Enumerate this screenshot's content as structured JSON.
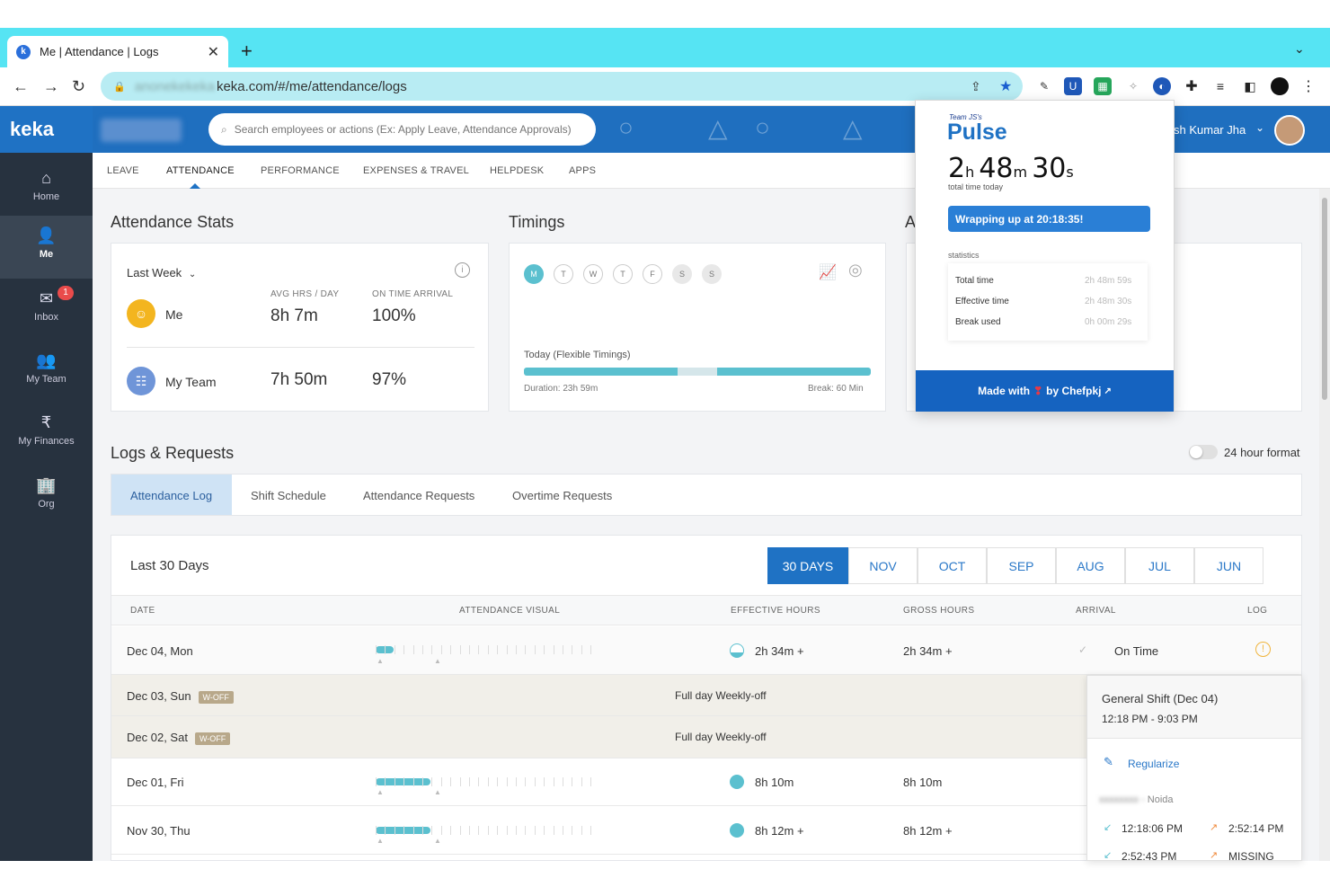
{
  "browser": {
    "tab_title": "Me | Attendance | Logs",
    "tab_favicon": "k",
    "close_glyph": "✕",
    "new_tab_glyph": "+",
    "tab_menu_glyph": "⌄",
    "url_prefix_blurred": "anonekekeka",
    "url": "keka.com/#/me/attendance/logs"
  },
  "app": {
    "logo": "keka",
    "search_placeholder": "Search employees or actions (Ex: Apply Leave, Attendance Approvals)",
    "user_name": "sh Kumar Jha"
  },
  "sidebar": {
    "items": [
      {
        "label": "Home",
        "icon": "⌂"
      },
      {
        "label": "Me",
        "icon": "👤"
      },
      {
        "label": "Inbox",
        "icon": "✉",
        "badge": "1"
      },
      {
        "label": "My Team",
        "icon": "👥"
      },
      {
        "label": "My Finances",
        "icon": "₹"
      },
      {
        "label": "Org",
        "icon": "🏢"
      }
    ]
  },
  "subnav": [
    "LEAVE",
    "ATTENDANCE",
    "PERFORMANCE",
    "EXPENSES & TRAVEL",
    "HELPDESK",
    "APPS"
  ],
  "stats": {
    "heading": "Attendance Stats",
    "period": "Last Week",
    "col_avg": "AVG HRS / DAY",
    "col_ontime": "ON TIME ARRIVAL",
    "me_label": "Me",
    "me_avg": "8h 7m",
    "me_ontime": "100%",
    "team_label": "My Team",
    "team_avg": "7h 50m",
    "team_ontime": "97%"
  },
  "timings": {
    "heading": "Timings",
    "days": [
      "M",
      "T",
      "W",
      "T",
      "F",
      "S",
      "S"
    ],
    "today_label": "Today (Flexible Timings)",
    "duration": "Duration: 23h 59m",
    "break": "Break: 60 Min"
  },
  "actions_heading_partial": "A",
  "logs": {
    "heading": "Logs & Requests",
    "format_toggle": "24 hour format",
    "tabs": [
      "Attendance Log",
      "Shift Schedule",
      "Attendance Requests",
      "Overtime Requests"
    ],
    "range_title": "Last 30 Days",
    "months": [
      "30 DAYS",
      "NOV",
      "OCT",
      "SEP",
      "AUG",
      "JUL",
      "JUN"
    ],
    "columns": [
      "DATE",
      "ATTENDANCE VISUAL",
      "EFFECTIVE HOURS",
      "GROSS HOURS",
      "ARRIVAL",
      "LOG"
    ],
    "rows": [
      {
        "date": "Dec 04, Mon",
        "effective": "2h 34m +",
        "gross": "2h 34m +",
        "arrival": "On Time",
        "bar_fraction": 0.08
      },
      {
        "date": "Dec 03, Sun",
        "badge": "W-OFF",
        "note": "Full day Weekly-off"
      },
      {
        "date": "Dec 02, Sat",
        "badge": "W-OFF",
        "note": "Full day Weekly-off"
      },
      {
        "date": "Dec 01, Fri",
        "effective": "8h 10m",
        "gross": "8h 10m",
        "bar_fraction": 0.25
      },
      {
        "date": "Nov 30, Thu",
        "effective": "8h 12m +",
        "gross": "8h 12m +",
        "bar_fraction": 0.25
      }
    ]
  },
  "detail": {
    "title": "General Shift (Dec 04)",
    "time": "12:18 PM - 9:03 PM",
    "regularize": "Regularize",
    "location_blurred": "xxxxxxxx -",
    "location": "Noida",
    "entries": [
      {
        "in": "12:18:06 PM",
        "out": "2:52:14 PM"
      },
      {
        "in": "2:52:43 PM",
        "out": "MISSING"
      }
    ]
  },
  "pulse": {
    "brand_small": "Team JS's",
    "brand": "Pulse",
    "hours": "2",
    "minutes": "48",
    "seconds": "30",
    "unit_h": "h",
    "unit_m": "m",
    "unit_s": "s",
    "total_label": "total time today",
    "wrapping": "Wrapping up at 20:18:35!",
    "statistics_label": "statistics",
    "stats": [
      {
        "label": "Total time",
        "value": "2h 48m 59s"
      },
      {
        "label": "Effective time",
        "value": "2h 48m 30s"
      },
      {
        "label": "Break used",
        "value": "0h 00m 29s"
      }
    ],
    "footer_prefix": "Made with",
    "footer_heart": "❣",
    "footer_suffix": "by Chefpkj"
  },
  "colors": {
    "accent": "#1f72c4",
    "teal": "#5bc0cf",
    "tabstrip": "#56e4f3"
  }
}
